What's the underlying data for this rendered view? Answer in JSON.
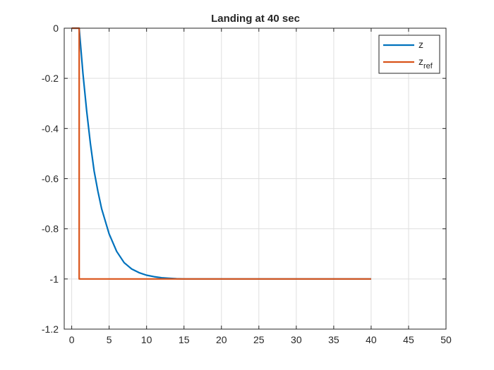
{
  "chart_data": {
    "type": "line",
    "title": "Landing at 40 sec",
    "xlabel": "",
    "ylabel": "",
    "xlim": [
      -1,
      50
    ],
    "ylim": [
      -1.2,
      0
    ],
    "xticks": [
      0,
      5,
      10,
      15,
      20,
      25,
      30,
      35,
      40,
      45,
      50
    ],
    "yticks": [
      0,
      -0.2,
      -0.4,
      -0.6,
      -0.8,
      -1,
      -1.2
    ],
    "xtick_labels": [
      "0",
      "5",
      "10",
      "15",
      "20",
      "25",
      "30",
      "35",
      "40",
      "45",
      "50"
    ],
    "ytick_labels": [
      "0",
      "-0.2",
      "-0.4",
      "-0.6",
      "-0.8",
      "-1",
      "-1.2"
    ],
    "grid": true,
    "legend_position": "top-right",
    "series": [
      {
        "name": "z",
        "color": "#0072BD",
        "x": [
          0,
          1,
          1.5,
          2,
          2.5,
          3,
          3.5,
          4,
          5,
          6,
          7,
          8,
          9,
          10,
          11,
          12,
          13,
          14,
          15,
          40
        ],
        "y": [
          0,
          0,
          -0.18,
          -0.33,
          -0.46,
          -0.57,
          -0.65,
          -0.72,
          -0.82,
          -0.89,
          -0.935,
          -0.96,
          -0.975,
          -0.985,
          -0.991,
          -0.995,
          -0.997,
          -0.999,
          -1,
          -1
        ]
      },
      {
        "name": "z_ref",
        "name_main": "z",
        "name_sub": "ref",
        "color": "#D95319",
        "x": [
          0,
          1,
          1,
          40
        ],
        "y": [
          0,
          0,
          -1,
          -1
        ]
      }
    ]
  }
}
